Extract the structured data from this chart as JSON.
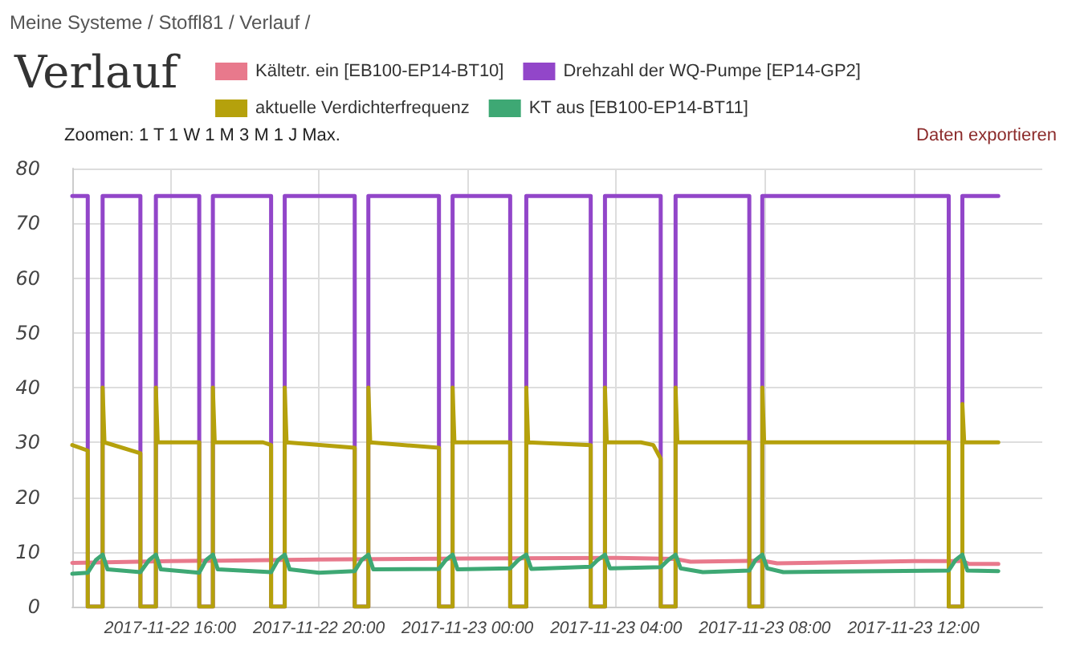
{
  "chart_data": {
    "type": "line",
    "title": "Verlauf",
    "annotations": [
      "Meine Systeme / Stoffl81 / Verlauf /",
      "Zoomen: 1 T 1 W 1 M 3 M 1 J Max.",
      "Daten exportieren"
    ],
    "xlim": [
      "2017-11-22T13:22",
      "2017-11-23T15:28"
    ],
    "xticks": [
      {
        "value": "2017-11-22T16:00",
        "label": "2017-11-22 16:00"
      },
      {
        "value": "2017-11-22T20:00",
        "label": "2017-11-22 20:00"
      },
      {
        "value": "2017-11-23T00:00",
        "label": "2017-11-23 00:00"
      },
      {
        "value": "2017-11-23T04:00",
        "label": "2017-11-23 04:00"
      },
      {
        "value": "2017-11-23T08:00",
        "label": "2017-11-23 08:00"
      },
      {
        "value": "2017-11-23T12:00",
        "label": "2017-11-23 12:00"
      }
    ],
    "ylim": [
      0,
      80
    ],
    "yticks": [
      0,
      10,
      20,
      30,
      40,
      50,
      60,
      70,
      80
    ],
    "grid": true,
    "legend": "top",
    "marker": "none",
    "line_style": "solid",
    "series": [
      {
        "name": "Kältetr. ein [EB100-EP14-BT10]",
        "color": "#e8798c",
        "x": [
          "2017-11-22T13:22",
          "2017-11-22T16:00",
          "2017-11-22T20:00",
          "2017-11-23T00:00",
          "2017-11-23T04:00",
          "2017-11-23T05:36",
          "2017-11-23T06:00",
          "2017-11-23T07:56",
          "2017-11-23T08:20",
          "2017-11-23T12:00",
          "2017-11-23T13:19",
          "2017-11-23T13:30",
          "2017-11-23T14:17"
        ],
        "values": [
          8.0,
          8.3,
          8.6,
          8.8,
          8.9,
          8.7,
          8.2,
          8.4,
          7.9,
          8.3,
          8.3,
          7.8,
          7.8
        ]
      },
      {
        "name": "Drehzahl der WQ-Pumpe [EP14-GP2]",
        "color": "#9246c9",
        "x": [
          "2017-11-22T13:22",
          "2017-11-22T13:47",
          "2017-11-22T13:47",
          "2017-11-22T14:11",
          "2017-11-22T14:11",
          "2017-11-22T15:12",
          "2017-11-22T15:12",
          "2017-11-22T15:37",
          "2017-11-22T15:37",
          "2017-11-22T16:47",
          "2017-11-22T16:47",
          "2017-11-22T17:09",
          "2017-11-22T17:09",
          "2017-11-22T18:43",
          "2017-11-22T18:43",
          "2017-11-22T19:05",
          "2017-11-22T19:05",
          "2017-11-22T20:58",
          "2017-11-22T20:58",
          "2017-11-22T21:20",
          "2017-11-22T21:20",
          "2017-11-22T23:14",
          "2017-11-22T23:14",
          "2017-11-22T23:36",
          "2017-11-22T23:36",
          "2017-11-23T01:09",
          "2017-11-23T01:09",
          "2017-11-23T01:35",
          "2017-11-23T01:35",
          "2017-11-23T03:19",
          "2017-11-23T03:19",
          "2017-11-23T03:42",
          "2017-11-23T03:42",
          "2017-11-23T05:12",
          "2017-11-23T05:12",
          "2017-11-23T05:36",
          "2017-11-23T05:36",
          "2017-11-23T07:35",
          "2017-11-23T07:35",
          "2017-11-23T07:56",
          "2017-11-23T07:56",
          "2017-11-23T12:57",
          "2017-11-23T12:57",
          "2017-11-23T13:19",
          "2017-11-23T13:19",
          "2017-11-23T14:17"
        ],
        "values": [
          75,
          75,
          0,
          0,
          75,
          75,
          0,
          0,
          75,
          75,
          0,
          0,
          75,
          75,
          0,
          0,
          75,
          75,
          0,
          0,
          75,
          75,
          0,
          0,
          75,
          75,
          0,
          0,
          75,
          75,
          0,
          0,
          75,
          75,
          0,
          0,
          75,
          75,
          0,
          0,
          75,
          75,
          0,
          0,
          75,
          75
        ]
      },
      {
        "name": "aktuelle Verdichterfrequenz",
        "color": "#b5a10c",
        "x": [
          "2017-11-22T13:22",
          "2017-11-22T13:47",
          "2017-11-22T13:47",
          "2017-11-22T14:11",
          "2017-11-22T14:11",
          "2017-11-22T14:14",
          "2017-11-22T15:12",
          "2017-11-22T15:12",
          "2017-11-22T15:37",
          "2017-11-22T15:37",
          "2017-11-22T15:40",
          "2017-11-22T16:47",
          "2017-11-22T16:47",
          "2017-11-22T17:09",
          "2017-11-22T17:09",
          "2017-11-22T17:12",
          "2017-11-22T18:30",
          "2017-11-22T18:43",
          "2017-11-22T18:43",
          "2017-11-22T19:05",
          "2017-11-22T19:05",
          "2017-11-22T19:08",
          "2017-11-22T20:58",
          "2017-11-22T20:58",
          "2017-11-22T21:20",
          "2017-11-22T21:20",
          "2017-11-22T21:23",
          "2017-11-22T23:14",
          "2017-11-22T23:14",
          "2017-11-22T23:36",
          "2017-11-22T23:36",
          "2017-11-22T23:39",
          "2017-11-23T01:09",
          "2017-11-23T01:09",
          "2017-11-23T01:35",
          "2017-11-23T01:35",
          "2017-11-23T01:38",
          "2017-11-23T03:19",
          "2017-11-23T03:19",
          "2017-11-23T03:42",
          "2017-11-23T03:42",
          "2017-11-23T03:45",
          "2017-11-23T04:40",
          "2017-11-23T05:00",
          "2017-11-23T05:12",
          "2017-11-23T05:12",
          "2017-11-23T05:36",
          "2017-11-23T05:36",
          "2017-11-23T05:39",
          "2017-11-23T07:35",
          "2017-11-23T07:35",
          "2017-11-23T07:56",
          "2017-11-23T07:56",
          "2017-11-23T07:59",
          "2017-11-23T12:57",
          "2017-11-23T12:57",
          "2017-11-23T13:19",
          "2017-11-23T13:19",
          "2017-11-23T13:22",
          "2017-11-23T14:17"
        ],
        "values": [
          29.5,
          28.5,
          0,
          0,
          40,
          30,
          28,
          0,
          0,
          40,
          30,
          30,
          0,
          0,
          40,
          30,
          30,
          29.5,
          0,
          0,
          40,
          30,
          29,
          0,
          0,
          40,
          30,
          29,
          0,
          0,
          40,
          30,
          30,
          0,
          0,
          40,
          30,
          29.5,
          0,
          0,
          40,
          30,
          30,
          29.5,
          27,
          0,
          0,
          40,
          30,
          30,
          0,
          0,
          40,
          30,
          30,
          0,
          0,
          37,
          30,
          30
        ]
      },
      {
        "name": "KT aus [EB100-EP14-BT11]",
        "color": "#3ea874",
        "x": [
          "2017-11-22T13:22",
          "2017-11-22T13:47",
          "2017-11-22T14:00",
          "2017-11-22T14:11",
          "2017-11-22T14:19",
          "2017-11-22T15:12",
          "2017-11-22T15:26",
          "2017-11-22T15:37",
          "2017-11-22T15:45",
          "2017-11-22T16:47",
          "2017-11-22T16:58",
          "2017-11-22T17:09",
          "2017-11-22T17:17",
          "2017-11-22T18:43",
          "2017-11-22T18:54",
          "2017-11-22T19:05",
          "2017-11-22T19:13",
          "2017-11-22T20:00",
          "2017-11-22T20:58",
          "2017-11-22T21:09",
          "2017-11-22T21:20",
          "2017-11-22T21:28",
          "2017-11-22T23:14",
          "2017-11-22T23:25",
          "2017-11-22T23:36",
          "2017-11-22T23:44",
          "2017-11-23T01:09",
          "2017-11-23T01:22",
          "2017-11-23T01:35",
          "2017-11-23T01:43",
          "2017-11-23T03:19",
          "2017-11-23T03:30",
          "2017-11-23T03:42",
          "2017-11-23T03:50",
          "2017-11-23T05:12",
          "2017-11-23T05:24",
          "2017-11-23T05:36",
          "2017-11-23T05:44",
          "2017-11-23T06:20",
          "2017-11-23T07:35",
          "2017-11-23T07:45",
          "2017-11-23T07:56",
          "2017-11-23T08:04",
          "2017-11-23T08:30",
          "2017-11-23T12:57",
          "2017-11-23T13:08",
          "2017-11-23T13:19",
          "2017-11-23T13:27",
          "2017-11-23T14:17"
        ],
        "values": [
          6.0,
          6.2,
          8.5,
          9.5,
          6.8,
          6.3,
          8.5,
          9.5,
          6.8,
          6.2,
          8.5,
          9.5,
          6.8,
          6.3,
          8.5,
          9.5,
          6.8,
          6.2,
          6.5,
          8.5,
          9.5,
          6.8,
          6.9,
          8.5,
          9.5,
          6.8,
          7.0,
          8.5,
          9.5,
          6.9,
          7.3,
          8.5,
          9.5,
          7.0,
          7.2,
          8.5,
          9.5,
          7.0,
          6.3,
          6.6,
          8.5,
          9.5,
          7.0,
          6.3,
          6.6,
          8.5,
          9.5,
          6.6,
          6.5
        ]
      }
    ]
  }
}
